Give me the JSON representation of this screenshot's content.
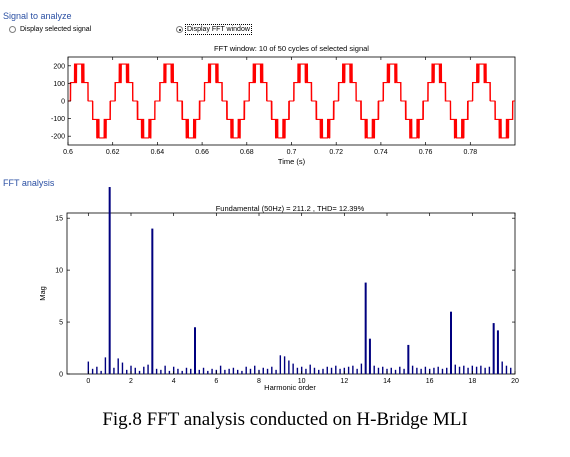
{
  "panel": {
    "signal_title": "Signal to analyze",
    "radio_selected_signal": "Display selected signal",
    "radio_fft_window": "Display FFT window",
    "fft_title": "FFT analysis"
  },
  "caption": "Fig.8 FFT analysis conducted on H-Bridge MLI",
  "colors": {
    "signal": "#ff0000",
    "bars": "#00007f",
    "section_title": "#2a4fa3"
  },
  "chart_data": [
    {
      "type": "line",
      "title": "FFT window: 10 of 50 cycles of selected signal",
      "xlabel": "Time (s)",
      "ylabel": "",
      "xlim": [
        0.6,
        0.8
      ],
      "ylim": [
        -250,
        250
      ],
      "x_ticks": [
        "0.6",
        "0.62",
        "0.64",
        "0.66",
        "0.68",
        "0.7",
        "0.72",
        "0.74",
        "0.76",
        "0.78"
      ],
      "y_ticks": [
        "200",
        "100",
        "0",
        "-100",
        "-200"
      ],
      "fundamental_hz": 50,
      "waveform": {
        "description_levels": [
          0,
          100,
          200
        ],
        "levels": [
          -210,
          -105,
          0,
          105,
          210
        ]
      }
    },
    {
      "type": "bar",
      "title": "Fundamental (50Hz) = 211.2 , THD= 12.39%",
      "xlabel": "Harmonic order",
      "ylabel": "Mag",
      "xlim": [
        -1,
        20
      ],
      "ylim": [
        0,
        15.5
      ],
      "x_ticks": [
        "0",
        "2",
        "4",
        "6",
        "8",
        "10",
        "12",
        "14",
        "16",
        "18",
        "20"
      ],
      "y_ticks": [
        "15",
        "10",
        "5",
        "0"
      ],
      "harmonic_order": [
        0.0,
        0.2,
        0.4,
        0.6,
        0.8,
        1.0,
        1.2,
        1.4,
        1.6,
        1.8,
        2.0,
        2.2,
        2.4,
        2.6,
        2.8,
        3.0,
        3.2,
        3.4,
        3.6,
        3.8,
        4.0,
        4.2,
        4.4,
        4.6,
        4.8,
        5.0,
        5.2,
        5.4,
        5.6,
        5.8,
        6.0,
        6.2,
        6.4,
        6.6,
        6.8,
        7.0,
        7.2,
        7.4,
        7.6,
        7.8,
        8.0,
        8.2,
        8.4,
        8.6,
        8.8,
        9.0,
        9.2,
        9.4,
        9.6,
        9.8,
        10.0,
        10.2,
        10.4,
        10.6,
        10.8,
        11.0,
        11.2,
        11.4,
        11.6,
        11.8,
        12.0,
        12.2,
        12.4,
        12.6,
        12.8,
        13.0,
        13.2,
        13.4,
        13.6,
        13.8,
        14.0,
        14.2,
        14.4,
        14.6,
        14.8,
        15.0,
        15.2,
        15.4,
        15.6,
        15.8,
        16.0,
        16.2,
        16.4,
        16.6,
        16.8,
        17.0,
        17.2,
        17.4,
        17.6,
        17.8,
        18.0,
        18.2,
        18.4,
        18.6,
        18.8,
        19.0,
        19.2,
        19.4,
        19.6,
        19.8
      ],
      "values": [
        1.2,
        0.5,
        0.7,
        0.3,
        1.6,
        18.0,
        0.6,
        1.5,
        1.1,
        0.4,
        0.8,
        0.6,
        0.3,
        0.7,
        0.9,
        14.0,
        0.5,
        0.4,
        0.8,
        0.3,
        0.7,
        0.5,
        0.3,
        0.6,
        0.5,
        4.5,
        0.4,
        0.6,
        0.3,
        0.5,
        0.4,
        0.8,
        0.4,
        0.5,
        0.6,
        0.4,
        0.3,
        0.7,
        0.5,
        0.8,
        0.4,
        0.6,
        0.5,
        0.7,
        0.4,
        1.8,
        1.7,
        1.3,
        1.0,
        0.6,
        0.7,
        0.5,
        0.9,
        0.6,
        0.4,
        0.5,
        0.7,
        0.6,
        0.8,
        0.5,
        0.6,
        0.7,
        0.8,
        0.5,
        1.0,
        8.8,
        3.4,
        0.8,
        0.6,
        0.7,
        0.5,
        0.6,
        0.4,
        0.7,
        0.5,
        2.8,
        0.8,
        0.6,
        0.5,
        0.7,
        0.5,
        0.6,
        0.7,
        0.5,
        0.6,
        6.0,
        0.9,
        0.7,
        0.8,
        0.6,
        0.8,
        0.7,
        0.8,
        0.6,
        0.7,
        4.9,
        4.2,
        1.2,
        0.8,
        0.6
      ]
    }
  ]
}
